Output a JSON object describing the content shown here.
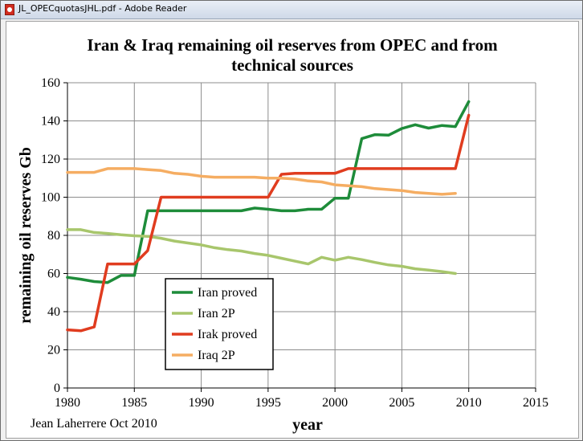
{
  "window": {
    "title": "JL_OPECquotasJHL.pdf - Adobe Reader",
    "icon": "pdf-document-icon"
  },
  "chart_data": {
    "type": "line",
    "title_lines": [
      "Iran & Iraq remaining oil reserves from OPEC and from",
      "technical sources"
    ],
    "xlabel": "year",
    "ylabel": "remaining oil reserves Gb",
    "xlim": [
      1980,
      2015
    ],
    "ylim": [
      0,
      160
    ],
    "xticks": [
      1980,
      1985,
      1990,
      1995,
      2000,
      2005,
      2010,
      2015
    ],
    "yticks": [
      0,
      20,
      40,
      60,
      80,
      100,
      120,
      140,
      160
    ],
    "grid": true,
    "legend_position": "bottom-left",
    "annotation": "Jean Laherrere Oct 2010",
    "series": [
      {
        "name": "Iran proved",
        "color": "#1e8c3a",
        "x": [
          1980,
          1981,
          1982,
          1983,
          1984,
          1985,
          1986,
          1987,
          1988,
          1989,
          1990,
          1991,
          1992,
          1993,
          1994,
          1995,
          1996,
          1997,
          1998,
          1999,
          2000,
          2001,
          2002,
          2003,
          2004,
          2005,
          2006,
          2007,
          2008,
          2009,
          2010
        ],
        "y": [
          58,
          57,
          55.8,
          55.3,
          59,
          59,
          92.9,
          92.9,
          92.9,
          92.9,
          92.9,
          92.9,
          92.9,
          92.9,
          94.3,
          93.7,
          92.9,
          92.9,
          93.7,
          93.7,
          99.5,
          99.5,
          130.7,
          132.8,
          132.5,
          136,
          138,
          136.2,
          137.6,
          137,
          150.1
        ]
      },
      {
        "name": "Iran 2P",
        "color": "#a8c66c",
        "x": [
          1980,
          1981,
          1982,
          1983,
          1984,
          1985,
          1986,
          1987,
          1988,
          1989,
          1990,
          1991,
          1992,
          1993,
          1994,
          1995,
          1996,
          1997,
          1998,
          1999,
          2000,
          2001,
          2002,
          2003,
          2004,
          2005,
          2006,
          2007,
          2008,
          2009
        ],
        "y": [
          83,
          83,
          81.5,
          81,
          80.3,
          79.8,
          79.5,
          78.5,
          77,
          76,
          75,
          73.5,
          72.5,
          71.8,
          70.5,
          69.5,
          68,
          66.5,
          65,
          68.5,
          67,
          68.5,
          67.3,
          65.8,
          64.5,
          63.8,
          62.5,
          61.8,
          61,
          60
        ]
      },
      {
        "name": "Irak proved",
        "color": "#e03c1f",
        "x": [
          1980,
          1981,
          1982,
          1983,
          1984,
          1985,
          1986,
          1987,
          1988,
          1989,
          1990,
          1991,
          1992,
          1993,
          1994,
          1995,
          1996,
          1997,
          1998,
          1999,
          2000,
          2001,
          2002,
          2003,
          2004,
          2005,
          2006,
          2007,
          2008,
          2009,
          2010
        ],
        "y": [
          30.5,
          30,
          32,
          65,
          65,
          65,
          72,
          100,
          100,
          100,
          100,
          100,
          100,
          100,
          100,
          100,
          112,
          112.5,
          112.5,
          112.5,
          112.5,
          115,
          115,
          115,
          115,
          115,
          115,
          115,
          115,
          115,
          143
        ]
      },
      {
        "name": "Iraq 2P",
        "color": "#f5ad62",
        "x": [
          1980,
          1981,
          1982,
          1983,
          1984,
          1985,
          1986,
          1987,
          1988,
          1989,
          1990,
          1991,
          1992,
          1993,
          1994,
          1995,
          1996,
          1997,
          1998,
          1999,
          2000,
          2001,
          2002,
          2003,
          2004,
          2005,
          2006,
          2007,
          2008,
          2009
        ],
        "y": [
          113,
          113,
          113,
          115,
          115,
          115,
          114.5,
          114,
          112.5,
          112,
          111,
          110.5,
          110.5,
          110.5,
          110.5,
          110,
          110,
          109.5,
          108.5,
          108,
          106.5,
          106,
          105.5,
          104.5,
          104,
          103.5,
          102.5,
          102,
          101.5,
          102
        ]
      }
    ]
  }
}
